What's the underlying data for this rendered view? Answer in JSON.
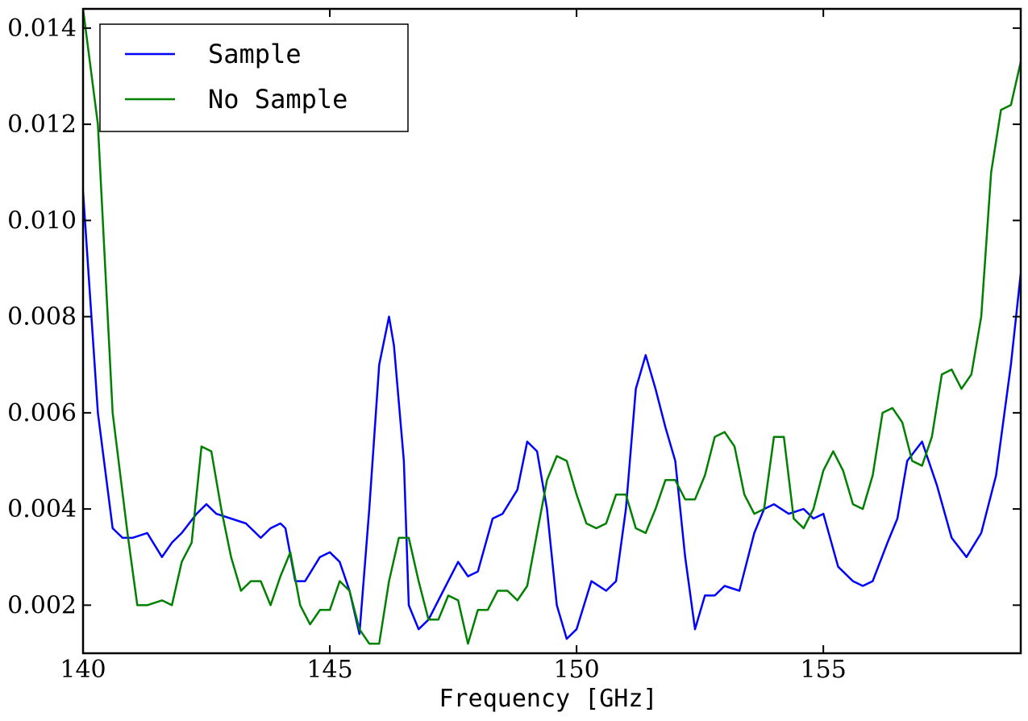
{
  "chart_data": {
    "type": "line",
    "title": "",
    "xlabel": "Frequency [GHz]",
    "ylabel": "",
    "xlim": [
      140,
      159
    ],
    "ylim": [
      0.001,
      0.0144
    ],
    "xticks": [
      140,
      145,
      150,
      155
    ],
    "xtick_labels": [
      "140",
      "145",
      "150",
      "155"
    ],
    "yticks": [
      0.002,
      0.004,
      0.006,
      0.008,
      0.01,
      0.012,
      0.014
    ],
    "ytick_labels": [
      "0.002",
      "0.004",
      "0.006",
      "0.008",
      "0.010",
      "0.012",
      "0.014"
    ],
    "grid": false,
    "legend_position": "top-left",
    "series": [
      {
        "name": "Sample",
        "color": "#0000ff",
        "x": [
          140.0,
          140.3,
          140.6,
          140.8,
          141.0,
          141.3,
          141.6,
          141.8,
          142.0,
          142.3,
          142.5,
          142.7,
          143.0,
          143.3,
          143.6,
          143.8,
          144.0,
          144.1,
          144.3,
          144.5,
          144.8,
          145.0,
          145.2,
          145.4,
          145.6,
          145.8,
          146.0,
          146.2,
          146.3,
          146.5,
          146.6,
          146.8,
          147.0,
          147.3,
          147.6,
          147.8,
          148.0,
          148.3,
          148.5,
          148.8,
          149.0,
          149.2,
          149.4,
          149.6,
          149.8,
          150.0,
          150.3,
          150.6,
          150.8,
          151.0,
          151.2,
          151.4,
          151.6,
          151.8,
          152.0,
          152.2,
          152.4,
          152.6,
          152.8,
          153.0,
          153.3,
          153.6,
          153.8,
          154.0,
          154.3,
          154.6,
          154.8,
          155.0,
          155.3,
          155.6,
          155.8,
          156.0,
          156.3,
          156.5,
          156.7,
          157.0,
          157.3,
          157.6,
          157.9,
          158.2,
          158.5,
          158.8,
          159.0
        ],
        "y": [
          0.0106,
          0.006,
          0.0036,
          0.0034,
          0.0034,
          0.0035,
          0.003,
          0.0033,
          0.0035,
          0.0039,
          0.0041,
          0.0039,
          0.0038,
          0.0037,
          0.0034,
          0.0036,
          0.0037,
          0.0036,
          0.0025,
          0.0025,
          0.003,
          0.0031,
          0.0029,
          0.0023,
          0.0014,
          0.004,
          0.007,
          0.008,
          0.0074,
          0.005,
          0.002,
          0.0015,
          0.0017,
          0.0023,
          0.0029,
          0.0026,
          0.0027,
          0.0038,
          0.0039,
          0.0044,
          0.0054,
          0.0052,
          0.004,
          0.002,
          0.0013,
          0.0015,
          0.0025,
          0.0023,
          0.0025,
          0.004,
          0.0065,
          0.0072,
          0.0065,
          0.0057,
          0.005,
          0.003,
          0.0015,
          0.0022,
          0.0022,
          0.0024,
          0.0023,
          0.0035,
          0.004,
          0.0041,
          0.0039,
          0.004,
          0.0038,
          0.0039,
          0.0028,
          0.0025,
          0.0024,
          0.0025,
          0.0033,
          0.0038,
          0.005,
          0.0054,
          0.0045,
          0.0034,
          0.003,
          0.0035,
          0.0047,
          0.007,
          0.0089
        ]
      },
      {
        "name": "No Sample",
        "color": "#008000",
        "x": [
          140.0,
          140.3,
          140.6,
          140.9,
          141.1,
          141.3,
          141.6,
          141.8,
          142.0,
          142.2,
          142.4,
          142.6,
          142.8,
          143.0,
          143.2,
          143.4,
          143.6,
          143.8,
          144.0,
          144.2,
          144.4,
          144.6,
          144.8,
          145.0,
          145.2,
          145.4,
          145.6,
          145.8,
          146.0,
          146.2,
          146.4,
          146.6,
          146.8,
          147.0,
          147.2,
          147.4,
          147.6,
          147.8,
          148.0,
          148.2,
          148.4,
          148.6,
          148.8,
          149.0,
          149.2,
          149.4,
          149.6,
          149.8,
          150.0,
          150.2,
          150.4,
          150.6,
          150.8,
          151.0,
          151.2,
          151.4,
          151.6,
          151.8,
          152.0,
          152.2,
          152.4,
          152.6,
          152.8,
          153.0,
          153.2,
          153.4,
          153.6,
          153.8,
          154.0,
          154.2,
          154.4,
          154.6,
          154.8,
          155.0,
          155.2,
          155.4,
          155.6,
          155.8,
          156.0,
          156.2,
          156.4,
          156.6,
          156.8,
          157.0,
          157.2,
          157.4,
          157.6,
          157.8,
          158.0,
          158.2,
          158.4,
          158.6,
          158.8,
          159.0
        ],
        "y": [
          0.0144,
          0.012,
          0.006,
          0.0035,
          0.002,
          0.002,
          0.0021,
          0.002,
          0.0029,
          0.0033,
          0.0053,
          0.0052,
          0.004,
          0.003,
          0.0023,
          0.0025,
          0.0025,
          0.002,
          0.0026,
          0.0031,
          0.002,
          0.0016,
          0.0019,
          0.0019,
          0.0025,
          0.0023,
          0.0015,
          0.0012,
          0.0012,
          0.0025,
          0.0034,
          0.0034,
          0.0025,
          0.0017,
          0.0017,
          0.0022,
          0.0021,
          0.0012,
          0.0019,
          0.0019,
          0.0023,
          0.0023,
          0.0021,
          0.0024,
          0.0035,
          0.0046,
          0.0051,
          0.005,
          0.0043,
          0.0037,
          0.0036,
          0.0037,
          0.0043,
          0.0043,
          0.0036,
          0.0035,
          0.004,
          0.0046,
          0.0046,
          0.0042,
          0.0042,
          0.0047,
          0.0055,
          0.0056,
          0.0053,
          0.0043,
          0.0039,
          0.004,
          0.0055,
          0.0055,
          0.0038,
          0.0036,
          0.004,
          0.0048,
          0.0052,
          0.0048,
          0.0041,
          0.004,
          0.0047,
          0.006,
          0.0061,
          0.0058,
          0.005,
          0.0049,
          0.0055,
          0.0068,
          0.0069,
          0.0065,
          0.0068,
          0.008,
          0.011,
          0.0123,
          0.0124,
          0.0133
        ]
      }
    ]
  }
}
